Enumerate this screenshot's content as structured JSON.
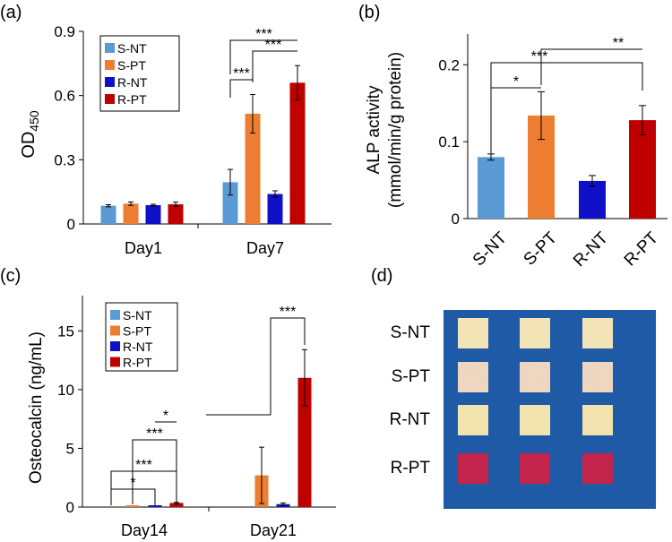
{
  "panel_labels": [
    "(a)",
    "(b)",
    "(c)",
    "(d)"
  ],
  "colors": {
    "S-NT": "#5b9bd5",
    "S-PT": "#ed7d31",
    "R-NT": "#1010c8",
    "R-PT": "#c00000"
  },
  "chart_data": [
    {
      "id": "a",
      "type": "bar",
      "ylabel": "OD",
      "ylabel_sub": "450",
      "categories": [
        "Day1",
        "Day7"
      ],
      "ylim": [
        0,
        0.9
      ],
      "yticks": [
        "0",
        "0.3",
        "0.6",
        "0.9"
      ],
      "legend": [
        "S-NT",
        "S-PT",
        "R-NT",
        "R-PT"
      ],
      "series": [
        {
          "name": "S-NT",
          "values": [
            0.085,
            0.195
          ],
          "errors": [
            0.005,
            0.06
          ]
        },
        {
          "name": "S-PT",
          "values": [
            0.095,
            0.515
          ],
          "errors": [
            0.008,
            0.09
          ]
        },
        {
          "name": "R-NT",
          "values": [
            0.088,
            0.14
          ],
          "errors": [
            0.004,
            0.015
          ]
        },
        {
          "name": "R-PT",
          "values": [
            0.092,
            0.66
          ],
          "errors": [
            0.01,
            0.08
          ]
        }
      ],
      "significance": [
        "***",
        "***",
        "***"
      ]
    },
    {
      "id": "b",
      "type": "bar",
      "ylabel": "ALP activity",
      "ylabel2": "(mmol/min/g protein)",
      "categories": [
        "S-NT",
        "S-PT",
        "R-NT",
        "R-PT"
      ],
      "ylim": [
        0,
        0.24
      ],
      "yticks": [
        "0",
        "0.1",
        "0.2"
      ],
      "values": [
        0.08,
        0.134,
        0.049,
        0.128
      ],
      "errors": [
        0.004,
        0.031,
        0.007,
        0.019
      ],
      "significance": [
        "*",
        "***",
        "**"
      ]
    },
    {
      "id": "c",
      "type": "bar",
      "ylabel": "Osteocalcin (ng/mL)",
      "categories": [
        "Day14",
        "Day21"
      ],
      "ylim": [
        0,
        18
      ],
      "yticks": [
        "0",
        "5",
        "10",
        "15"
      ],
      "legend": [
        "S-NT",
        "S-PT",
        "R-NT",
        "R-PT"
      ],
      "series": [
        {
          "name": "S-NT",
          "values": [
            0.0,
            0.0
          ],
          "errors": [
            0,
            0
          ]
        },
        {
          "name": "S-PT",
          "values": [
            0.05,
            2.7
          ],
          "errors": [
            0,
            2.4
          ]
        },
        {
          "name": "R-NT",
          "values": [
            0.15,
            0.25
          ],
          "errors": [
            0,
            0.1
          ]
        },
        {
          "name": "R-PT",
          "values": [
            0.35,
            11.0
          ],
          "errors": [
            0.05,
            2.4
          ]
        }
      ],
      "significance": [
        "*",
        "***",
        "***",
        "*",
        "***"
      ]
    }
  ],
  "plate": {
    "rows": [
      "S-NT",
      "S-PT",
      "R-NT",
      "R-PT"
    ],
    "background": "#1f5aa6",
    "well_colors": [
      "#f3e4b8",
      "#eed8c0",
      "#f2e2ae",
      "#c2244c"
    ]
  }
}
